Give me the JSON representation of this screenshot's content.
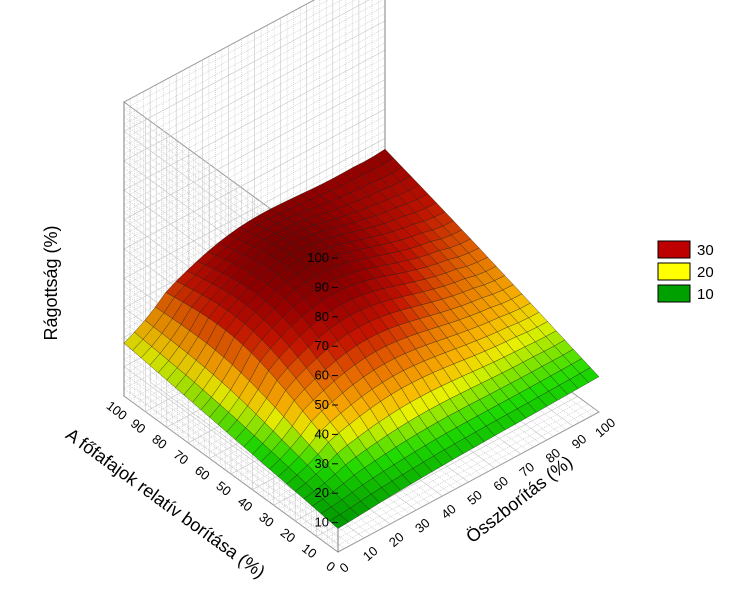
{
  "chart_data": {
    "type": "surface3d",
    "xlabel": "Összborítás (%)",
    "ylabel": "A főfafajok relatív borítása (%)",
    "zlabel": "Rágottság (%)",
    "x_ticks": [
      "0",
      "10",
      "20",
      "30",
      "40",
      "50",
      "60",
      "70",
      "80",
      "90",
      "100"
    ],
    "y_ticks": [
      "0",
      "10",
      "20",
      "30",
      "40",
      "50",
      "60",
      "70",
      "80",
      "90",
      "100"
    ],
    "z_ticks": [
      "10",
      "20",
      "30",
      "40",
      "50",
      "60",
      "70",
      "80",
      "90",
      "100"
    ],
    "xlim": [
      0,
      100
    ],
    "ylim": [
      0,
      100
    ],
    "zlim": [
      0,
      100
    ],
    "corner_values": [
      {
        "x": 0,
        "y": 0,
        "z": 8
      },
      {
        "x": 100,
        "y": 0,
        "z": 12
      },
      {
        "x": 0,
        "y": 100,
        "z": 18
      },
      {
        "x": 100,
        "y": 100,
        "z": 36
      }
    ],
    "peak": {
      "x": 40,
      "y": 65,
      "z": 39
    },
    "legend": {
      "placement": "right",
      "items": [
        {
          "label": "30",
          "color": "#bf0000"
        },
        {
          "label": "20",
          "color": "#ffff00"
        },
        {
          "label": "10",
          "color": "#00a000"
        }
      ]
    },
    "grid": true
  }
}
